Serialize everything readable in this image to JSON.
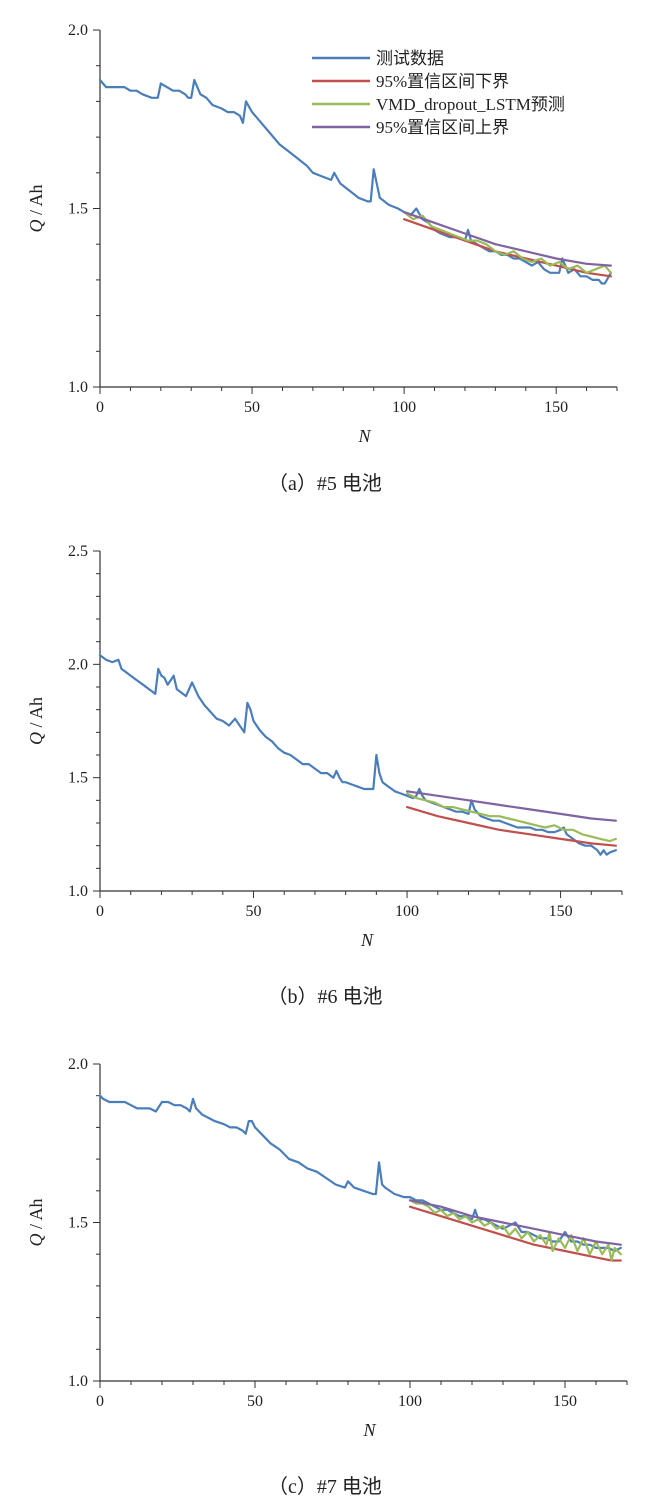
{
  "chart_data": [
    {
      "type": "line",
      "caption": "（a）#5 电池",
      "xlabel": "N",
      "ylabel_var": "Q",
      "ylabel_unit": " / Ah",
      "xlim": [
        0,
        170
      ],
      "ylim": [
        1.0,
        2.0
      ],
      "xticks": [
        0,
        50,
        100,
        150
      ],
      "xtick_labels": [
        "0",
        "50",
        "100",
        "150"
      ],
      "yticks": [
        1.0,
        1.5,
        2.0
      ],
      "ytick_labels": [
        "1.0",
        "1.5",
        "2.0"
      ],
      "legend": {
        "position": "top-right",
        "entries": [
          "测试数据",
          "95%置信区间下界",
          "VMD_dropout_LSTM预测",
          "95%置信区间上界"
        ]
      },
      "series": [
        {
          "name": "测试数据",
          "color": "#4a7ebb",
          "x": [
            0,
            2,
            4,
            8,
            10,
            12,
            14,
            17,
            19,
            20,
            22,
            24,
            26,
            28,
            29,
            30,
            31,
            33,
            35,
            37,
            40,
            42,
            44,
            46,
            47,
            48,
            50,
            53,
            56,
            59,
            62,
            65,
            68,
            70,
            73,
            76,
            77,
            79,
            82,
            85,
            88,
            89,
            90,
            92,
            95,
            98,
            100,
            102,
            103,
            104,
            106,
            108,
            110,
            112,
            115,
            118,
            120,
            121,
            122,
            124,
            126,
            128,
            130,
            132,
            134,
            136,
            138,
            140,
            142,
            144,
            146,
            148,
            150,
            151,
            152,
            154,
            156,
            158,
            160,
            162,
            164,
            165,
            166,
            168
          ],
          "y": [
            1.86,
            1.84,
            1.84,
            1.84,
            1.83,
            1.83,
            1.82,
            1.81,
            1.81,
            1.85,
            1.84,
            1.83,
            1.83,
            1.82,
            1.81,
            1.81,
            1.86,
            1.82,
            1.81,
            1.79,
            1.78,
            1.77,
            1.77,
            1.76,
            1.74,
            1.8,
            1.77,
            1.74,
            1.71,
            1.68,
            1.66,
            1.64,
            1.62,
            1.6,
            1.59,
            1.58,
            1.6,
            1.57,
            1.55,
            1.53,
            1.52,
            1.52,
            1.61,
            1.53,
            1.51,
            1.5,
            1.49,
            1.48,
            1.49,
            1.5,
            1.47,
            1.46,
            1.44,
            1.43,
            1.42,
            1.42,
            1.41,
            1.44,
            1.41,
            1.4,
            1.39,
            1.38,
            1.38,
            1.37,
            1.37,
            1.36,
            1.36,
            1.35,
            1.34,
            1.35,
            1.33,
            1.32,
            1.32,
            1.32,
            1.36,
            1.32,
            1.33,
            1.31,
            1.31,
            1.3,
            1.3,
            1.29,
            1.29,
            1.32
          ]
        },
        {
          "name": "95%置信区间下界",
          "color": "#c0504d",
          "x": [
            100,
            110,
            120,
            130,
            140,
            150,
            160,
            168
          ],
          "y": [
            1.47,
            1.44,
            1.41,
            1.38,
            1.36,
            1.34,
            1.32,
            1.31
          ]
        },
        {
          "name": "VMD_dropout_LSTM预测",
          "color": "#9bbb59",
          "x": [
            100,
            103,
            106,
            109,
            112,
            115,
            118,
            121,
            124,
            127,
            130,
            133,
            136,
            139,
            142,
            145,
            148,
            151,
            154,
            157,
            160,
            163,
            166,
            168
          ],
          "y": [
            1.49,
            1.47,
            1.48,
            1.45,
            1.44,
            1.43,
            1.42,
            1.41,
            1.41,
            1.4,
            1.38,
            1.37,
            1.38,
            1.36,
            1.35,
            1.36,
            1.34,
            1.35,
            1.33,
            1.34,
            1.32,
            1.33,
            1.34,
            1.32
          ]
        },
        {
          "name": "95%置信区间上界",
          "color": "#8064a2",
          "x": [
            100,
            110,
            120,
            130,
            140,
            150,
            160,
            168
          ],
          "y": [
            1.49,
            1.46,
            1.43,
            1.4,
            1.38,
            1.36,
            1.345,
            1.34
          ]
        }
      ]
    },
    {
      "type": "line",
      "caption": "（b）#6 电池",
      "xlabel": "N",
      "ylabel_var": "Q",
      "ylabel_unit": " / Ah",
      "xlim": [
        0,
        170
      ],
      "ylim": [
        1.0,
        2.5
      ],
      "xticks": [
        0,
        50,
        100,
        150
      ],
      "xtick_labels": [
        "0",
        "50",
        "100",
        "150"
      ],
      "yticks": [
        1.0,
        1.5,
        2.0,
        2.5
      ],
      "ytick_labels": [
        "1.0",
        "1.5",
        "2.0",
        "2.5"
      ],
      "series": [
        {
          "name": "测试数据",
          "color": "#4a7ebb",
          "x": [
            0,
            2,
            4,
            6,
            7,
            8,
            10,
            12,
            14,
            16,
            18,
            19,
            20,
            21,
            22,
            24,
            25,
            26,
            28,
            30,
            31,
            32,
            34,
            36,
            38,
            40,
            42,
            44,
            46,
            47,
            48,
            49,
            50,
            52,
            54,
            56,
            58,
            60,
            62,
            64,
            66,
            68,
            70,
            72,
            74,
            76,
            77,
            78,
            79,
            80,
            82,
            84,
            86,
            88,
            89,
            90,
            91,
            92,
            94,
            96,
            98,
            100,
            102,
            103,
            104,
            105,
            106,
            108,
            110,
            112,
            114,
            116,
            118,
            120,
            121,
            122,
            124,
            126,
            128,
            130,
            132,
            134,
            136,
            138,
            140,
            142,
            144,
            146,
            148,
            150,
            151,
            152,
            154,
            156,
            158,
            160,
            162,
            163,
            164,
            165,
            166,
            168
          ],
          "y": [
            2.04,
            2.02,
            2.01,
            2.02,
            1.98,
            1.97,
            1.95,
            1.93,
            1.91,
            1.89,
            1.87,
            1.98,
            1.95,
            1.94,
            1.91,
            1.95,
            1.89,
            1.88,
            1.86,
            1.92,
            1.89,
            1.86,
            1.82,
            1.79,
            1.76,
            1.75,
            1.73,
            1.76,
            1.72,
            1.7,
            1.83,
            1.8,
            1.75,
            1.71,
            1.68,
            1.66,
            1.63,
            1.61,
            1.6,
            1.58,
            1.56,
            1.56,
            1.54,
            1.52,
            1.52,
            1.5,
            1.53,
            1.5,
            1.48,
            1.48,
            1.47,
            1.46,
            1.45,
            1.45,
            1.45,
            1.6,
            1.52,
            1.48,
            1.46,
            1.44,
            1.43,
            1.42,
            1.41,
            1.42,
            1.45,
            1.42,
            1.4,
            1.39,
            1.38,
            1.37,
            1.36,
            1.35,
            1.35,
            1.34,
            1.4,
            1.36,
            1.33,
            1.32,
            1.31,
            1.31,
            1.3,
            1.29,
            1.28,
            1.28,
            1.28,
            1.27,
            1.27,
            1.26,
            1.26,
            1.27,
            1.28,
            1.25,
            1.23,
            1.21,
            1.2,
            1.2,
            1.18,
            1.16,
            1.18,
            1.16,
            1.17,
            1.18
          ]
        },
        {
          "name": "95%置信区间下界",
          "color": "#c0504d",
          "x": [
            100,
            110,
            120,
            130,
            140,
            150,
            160,
            168
          ],
          "y": [
            1.37,
            1.33,
            1.3,
            1.27,
            1.25,
            1.23,
            1.21,
            1.2
          ]
        },
        {
          "name": "VMD_dropout_LSTM预测",
          "color": "#9bbb59",
          "x": [
            100,
            103,
            106,
            109,
            112,
            115,
            118,
            121,
            124,
            127,
            130,
            133,
            136,
            139,
            142,
            145,
            148,
            151,
            154,
            157,
            160,
            163,
            166,
            168
          ],
          "y": [
            1.43,
            1.41,
            1.4,
            1.39,
            1.37,
            1.37,
            1.36,
            1.35,
            1.34,
            1.33,
            1.33,
            1.32,
            1.31,
            1.3,
            1.29,
            1.28,
            1.29,
            1.27,
            1.27,
            1.25,
            1.24,
            1.23,
            1.22,
            1.23
          ]
        },
        {
          "name": "95%置信区间上界",
          "color": "#8064a2",
          "x": [
            100,
            110,
            120,
            130,
            140,
            150,
            160,
            168
          ],
          "y": [
            1.44,
            1.42,
            1.4,
            1.38,
            1.36,
            1.34,
            1.32,
            1.31
          ]
        }
      ]
    },
    {
      "type": "line",
      "caption": "（c）#7 电池",
      "xlabel": "N",
      "ylabel_var": "Q",
      "ylabel_unit": " / Ah",
      "xlim": [
        0,
        170
      ],
      "ylim": [
        1.0,
        2.0
      ],
      "xticks": [
        0,
        50,
        100,
        150
      ],
      "xtick_labels": [
        "0",
        "50",
        "100",
        "150"
      ],
      "yticks": [
        1.0,
        1.5,
        2.0
      ],
      "ytick_labels": [
        "1.0",
        "1.5",
        "2.0"
      ],
      "series": [
        {
          "name": "测试数据",
          "color": "#4a7ebb",
          "x": [
            0,
            1,
            3,
            5,
            8,
            10,
            12,
            14,
            16,
            18,
            20,
            22,
            24,
            26,
            28,
            29,
            30,
            31,
            33,
            35,
            37,
            40,
            42,
            44,
            46,
            47,
            48,
            49,
            50,
            52,
            55,
            58,
            61,
            64,
            67,
            70,
            73,
            76,
            79,
            80,
            82,
            85,
            88,
            89,
            90,
            91,
            92,
            95,
            98,
            100,
            102,
            104,
            106,
            108,
            110,
            112,
            114,
            116,
            118,
            120,
            121,
            122,
            124,
            126,
            128,
            130,
            132,
            134,
            136,
            138,
            140,
            142,
            144,
            146,
            148,
            150,
            152,
            154,
            156,
            158,
            160,
            162,
            164,
            166,
            168
          ],
          "y": [
            1.9,
            1.89,
            1.88,
            1.88,
            1.88,
            1.87,
            1.86,
            1.86,
            1.86,
            1.85,
            1.88,
            1.88,
            1.87,
            1.87,
            1.86,
            1.85,
            1.89,
            1.86,
            1.84,
            1.83,
            1.82,
            1.81,
            1.8,
            1.8,
            1.79,
            1.78,
            1.82,
            1.82,
            1.8,
            1.78,
            1.75,
            1.73,
            1.7,
            1.69,
            1.67,
            1.66,
            1.64,
            1.62,
            1.61,
            1.63,
            1.61,
            1.6,
            1.59,
            1.59,
            1.69,
            1.62,
            1.61,
            1.59,
            1.58,
            1.58,
            1.57,
            1.57,
            1.56,
            1.55,
            1.54,
            1.54,
            1.53,
            1.52,
            1.52,
            1.51,
            1.54,
            1.51,
            1.51,
            1.5,
            1.49,
            1.48,
            1.49,
            1.5,
            1.47,
            1.47,
            1.46,
            1.45,
            1.45,
            1.44,
            1.44,
            1.47,
            1.44,
            1.44,
            1.43,
            1.43,
            1.42,
            1.42,
            1.42,
            1.41,
            1.42
          ]
        },
        {
          "name": "95%置信区间下界",
          "color": "#c0504d",
          "x": [
            100,
            110,
            120,
            130,
            140,
            150,
            160,
            165,
            168
          ],
          "y": [
            1.55,
            1.52,
            1.49,
            1.46,
            1.43,
            1.41,
            1.39,
            1.38,
            1.38
          ]
        },
        {
          "name": "VMD_dropout_LSTM预测",
          "color": "#9bbb59",
          "x": [
            100,
            102,
            104,
            106,
            108,
            110,
            112,
            114,
            116,
            118,
            120,
            122,
            124,
            126,
            128,
            130,
            132,
            134,
            136,
            138,
            140,
            142,
            144,
            145,
            146,
            148,
            150,
            152,
            154,
            156,
            158,
            160,
            162,
            164,
            165,
            166,
            168
          ],
          "y": [
            1.57,
            1.56,
            1.56,
            1.55,
            1.53,
            1.54,
            1.52,
            1.53,
            1.51,
            1.52,
            1.5,
            1.51,
            1.49,
            1.5,
            1.48,
            1.49,
            1.46,
            1.48,
            1.45,
            1.47,
            1.44,
            1.46,
            1.43,
            1.47,
            1.41,
            1.45,
            1.42,
            1.46,
            1.41,
            1.45,
            1.4,
            1.44,
            1.4,
            1.43,
            1.38,
            1.42,
            1.4
          ]
        },
        {
          "name": "95%置信区间上界",
          "color": "#8064a2",
          "x": [
            100,
            110,
            120,
            130,
            140,
            150,
            160,
            168
          ],
          "y": [
            1.57,
            1.55,
            1.52,
            1.5,
            1.48,
            1.46,
            1.44,
            1.43
          ]
        }
      ]
    }
  ]
}
